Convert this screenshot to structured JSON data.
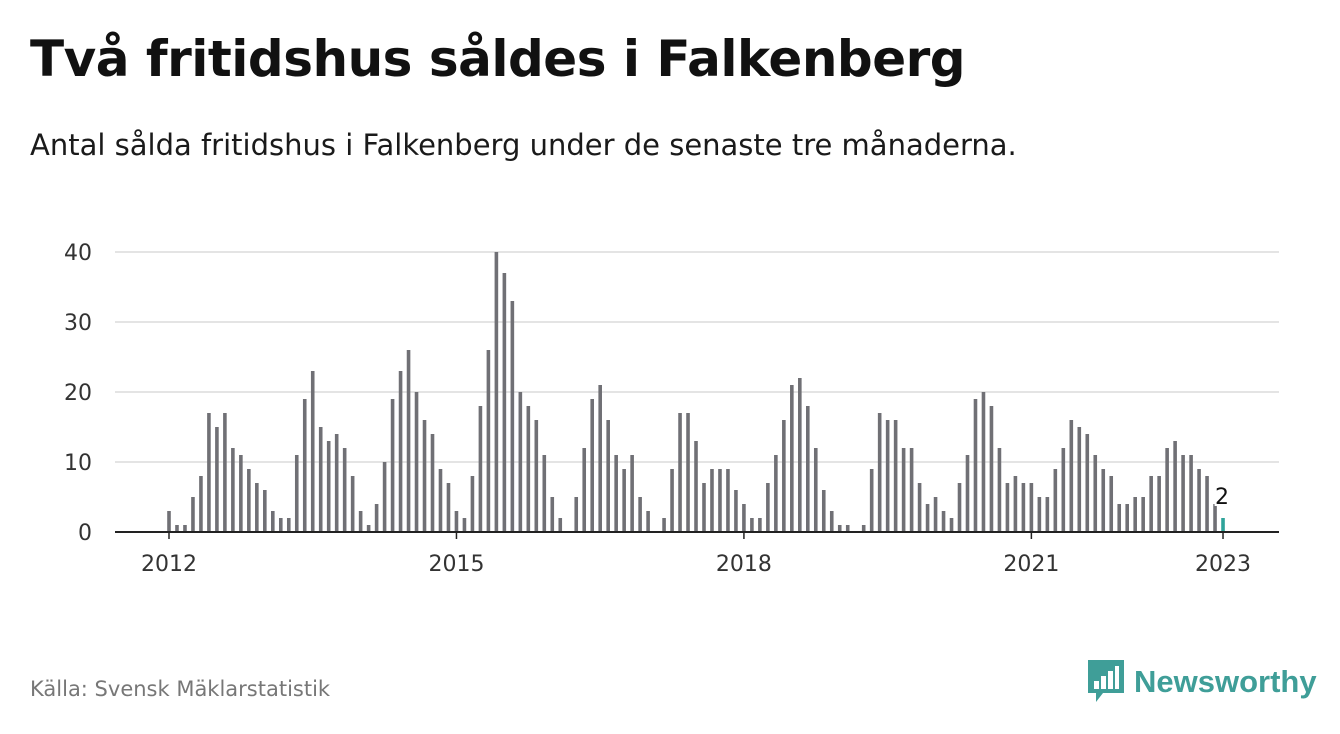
{
  "title": "Två fritidshus såldes i Falkenberg",
  "subtitle": "Antal sålda fritidshus i Falkenberg under de senaste tre månaderna.",
  "source": "Källa: Svensk Mäklarstatistik",
  "brand": {
    "name": "Newsworthy",
    "color": "#3f9e98",
    "icon": "bar-chart-speech-bubble-icon"
  },
  "chart_data": {
    "type": "bar",
    "title": "",
    "xlabel": "",
    "ylabel": "",
    "ylim": [
      0,
      40
    ],
    "yticks": [
      0,
      10,
      20,
      30,
      40
    ],
    "xticks": [
      "2012",
      "2015",
      "2018",
      "2021",
      "2023"
    ],
    "grid": true,
    "bar_color": "#707075",
    "highlight_color": "#2fa39a",
    "highlight_label": "2",
    "series": [
      {
        "start": "2012-01",
        "values": [
          3,
          1,
          1,
          5,
          8,
          17,
          15,
          17,
          12,
          11,
          9,
          7,
          6,
          3,
          2,
          2,
          11,
          19,
          23,
          15,
          13,
          14,
          12,
          8,
          3,
          1,
          4,
          10,
          19,
          23,
          26,
          20,
          16,
          14,
          9,
          7,
          3,
          2,
          8,
          18,
          26,
          40,
          37,
          33,
          20,
          18,
          16,
          11,
          5,
          2,
          0,
          5,
          12,
          19,
          21,
          16,
          11,
          9,
          11,
          5,
          3,
          0,
          2,
          9,
          17,
          17,
          13,
          7,
          9,
          9,
          9,
          6,
          4,
          2,
          2,
          7,
          11,
          16,
          21,
          22,
          18,
          12,
          6,
          3,
          1,
          1,
          0,
          1,
          9,
          17,
          16,
          16,
          12,
          12,
          7,
          4,
          5,
          3,
          2,
          7,
          11,
          19,
          20,
          18,
          12,
          7,
          8,
          7,
          7,
          5,
          5,
          9,
          12,
          16,
          15,
          14,
          11,
          9,
          8,
          4,
          4,
          5,
          5,
          8,
          8,
          12,
          13,
          11,
          11,
          9,
          8,
          4,
          2
        ]
      }
    ]
  }
}
